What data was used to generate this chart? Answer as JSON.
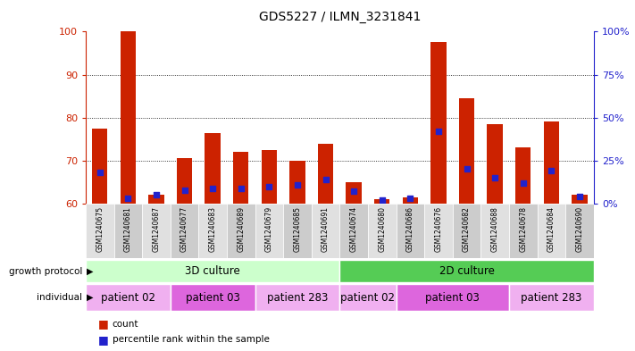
{
  "title": "GDS5227 / ILMN_3231841",
  "samples": [
    "GSM1240675",
    "GSM1240681",
    "GSM1240687",
    "GSM1240677",
    "GSM1240683",
    "GSM1240689",
    "GSM1240679",
    "GSM1240685",
    "GSM1240691",
    "GSM1240674",
    "GSM1240680",
    "GSM1240686",
    "GSM1240676",
    "GSM1240682",
    "GSM1240688",
    "GSM1240678",
    "GSM1240684",
    "GSM1240690"
  ],
  "count_values": [
    77.5,
    100.0,
    62.0,
    70.5,
    76.5,
    72.0,
    72.5,
    70.0,
    74.0,
    65.0,
    61.0,
    61.5,
    97.5,
    84.5,
    78.5,
    73.0,
    79.0,
    62.0
  ],
  "percentile_values": [
    18,
    3,
    5,
    8,
    9,
    9,
    10,
    11,
    14,
    7,
    2,
    3,
    42,
    20,
    15,
    12,
    19,
    4
  ],
  "ymin": 60,
  "ymax": 100,
  "y_ticks_left": [
    60,
    70,
    80,
    90,
    100
  ],
  "y_ticks_right": [
    0,
    25,
    50,
    75,
    100
  ],
  "growth_protocol_groups": [
    {
      "label": "3D culture",
      "start": 0,
      "end": 9,
      "color": "#ccffcc"
    },
    {
      "label": "2D culture",
      "start": 9,
      "end": 18,
      "color": "#55cc55"
    }
  ],
  "individual_groups": [
    {
      "label": "patient 02",
      "start": 0,
      "end": 3,
      "color": "#f0b0f0"
    },
    {
      "label": "patient 03",
      "start": 3,
      "end": 6,
      "color": "#dd66dd"
    },
    {
      "label": "patient 283",
      "start": 6,
      "end": 9,
      "color": "#f0b0f0"
    },
    {
      "label": "patient 02",
      "start": 9,
      "end": 11,
      "color": "#f0b0f0"
    },
    {
      "label": "patient 03",
      "start": 11,
      "end": 15,
      "color": "#dd66dd"
    },
    {
      "label": "patient 283",
      "start": 15,
      "end": 18,
      "color": "#f0b0f0"
    }
  ],
  "bar_color": "#cc2200",
  "percentile_color": "#2222cc",
  "bg_color": "#ffffff",
  "grid_color": "#000000",
  "left_axis_color": "#cc2200",
  "right_axis_color": "#2222cc",
  "sample_bg_colors": [
    "#e0e0e0",
    "#cccccc"
  ],
  "gp_label": "growth protocol",
  "ind_label": "individual",
  "legend_count": "count",
  "legend_percentile": "percentile rank within the sample"
}
